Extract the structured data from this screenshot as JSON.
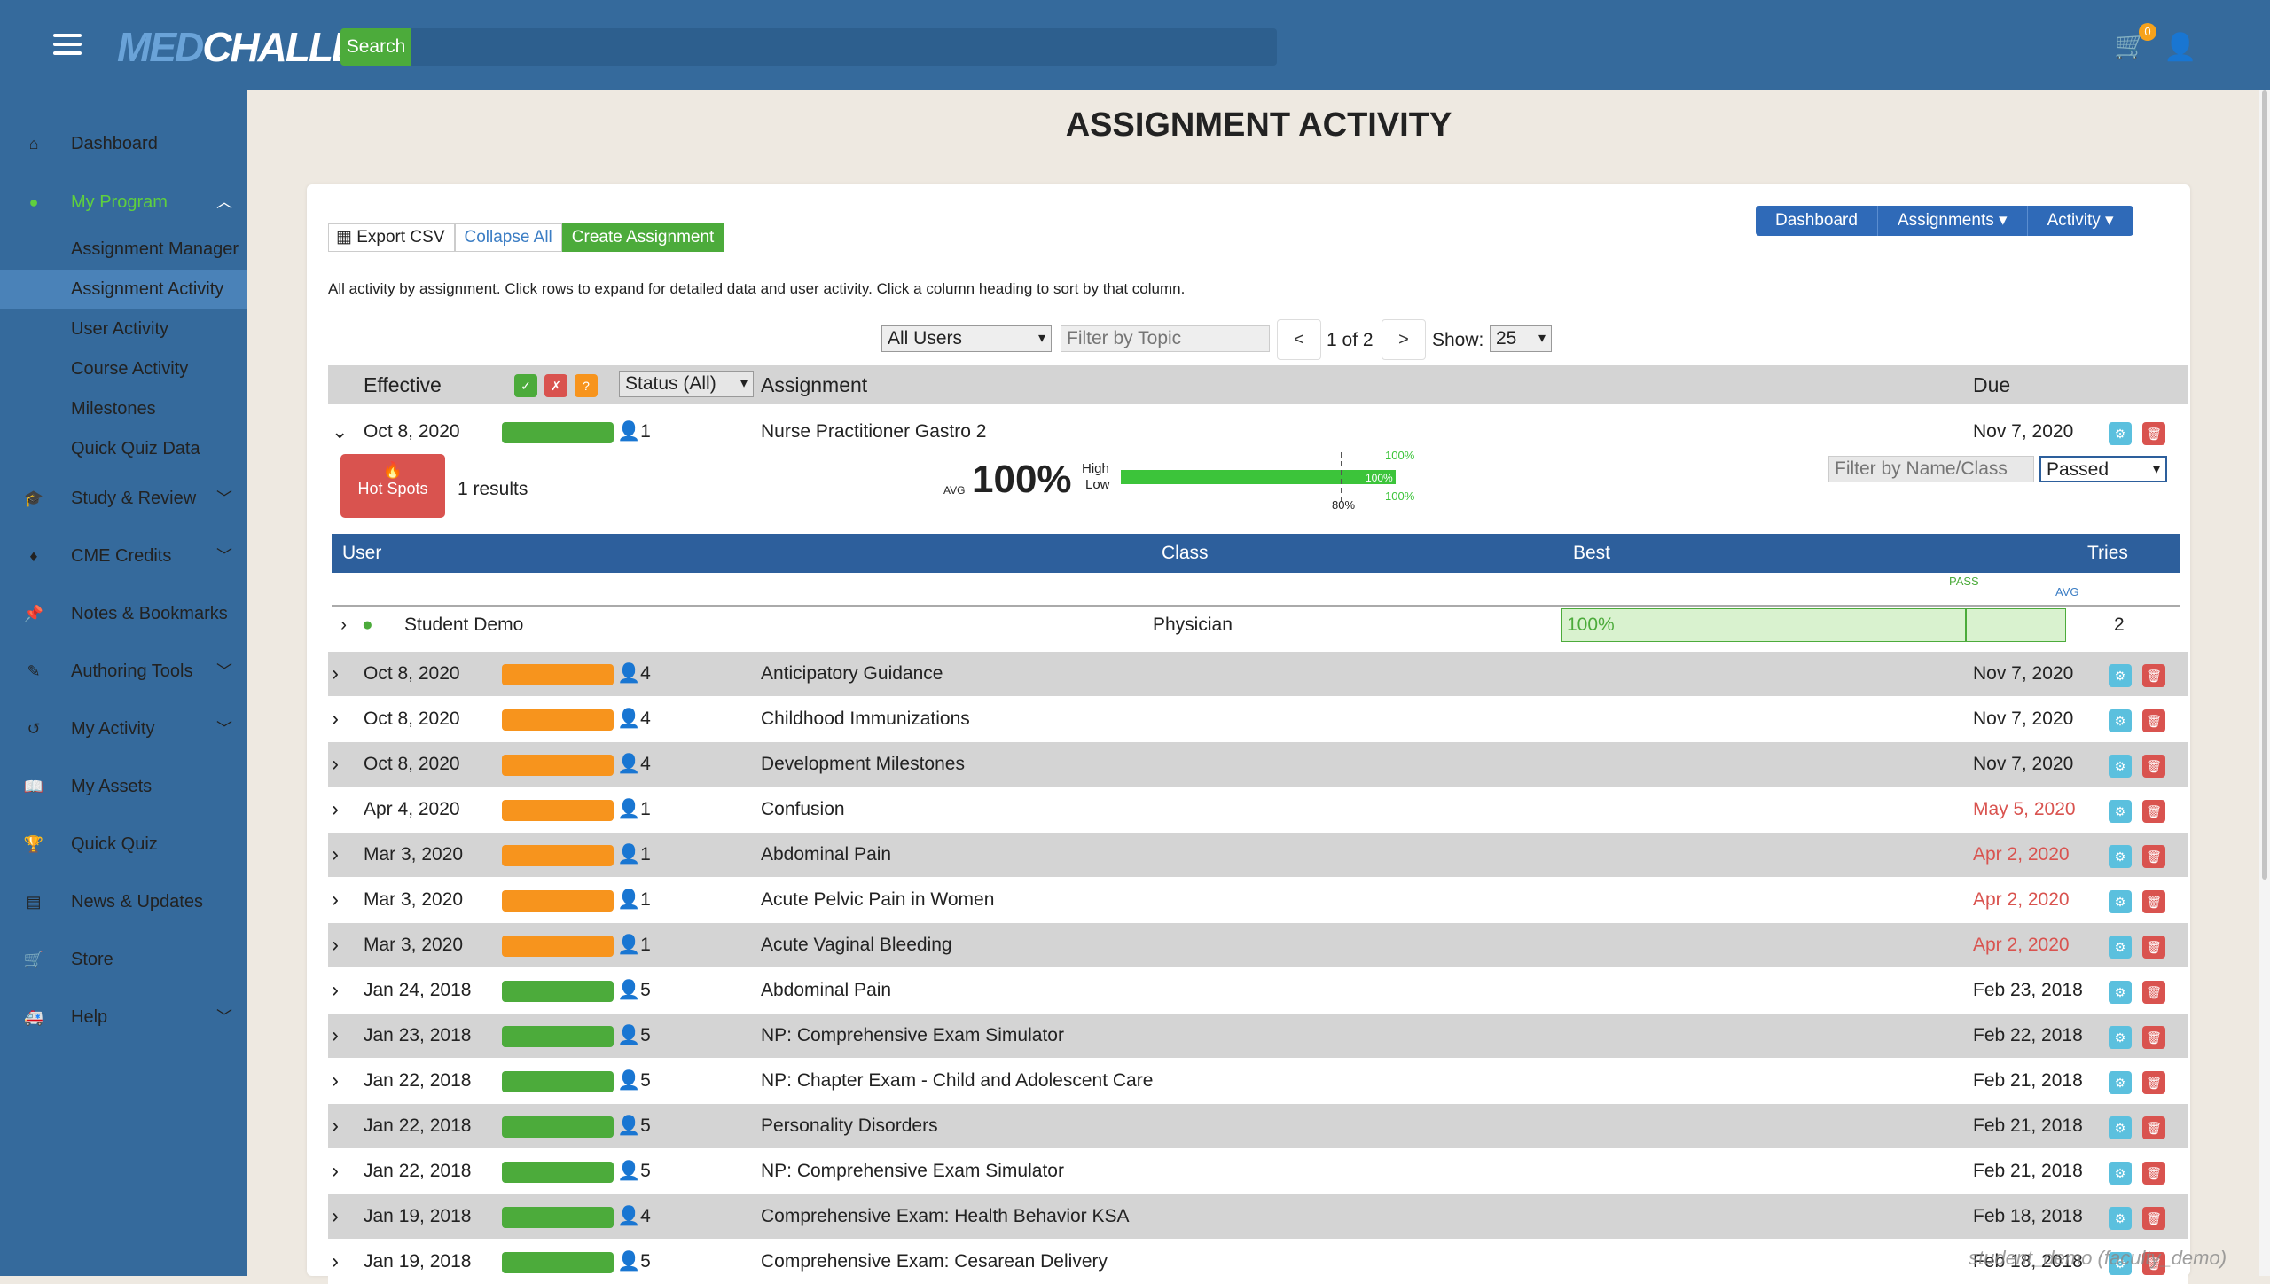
{
  "header": {
    "logo_med": "MED",
    "logo_challenger": "CHALLENGER",
    "search_label": "Search",
    "search_placeholder": "",
    "cart_count": "0"
  },
  "sidebar": {
    "items": [
      {
        "label": "Dashboard",
        "icon": "home-icon"
      },
      {
        "label": "My Program",
        "icon": "users-icon"
      },
      {
        "label": "Study & Review",
        "icon": "graduation-cap-icon"
      },
      {
        "label": "CME Credits",
        "icon": "certificate-icon"
      },
      {
        "label": "Notes & Bookmarks",
        "icon": "pushpin-icon"
      },
      {
        "label": "Authoring Tools",
        "icon": "edit-icon"
      },
      {
        "label": "My Activity",
        "icon": "history-icon"
      },
      {
        "label": "My Assets",
        "icon": "book-icon"
      },
      {
        "label": "Quick Quiz",
        "icon": "trophy-icon"
      },
      {
        "label": "News & Updates",
        "icon": "newspaper-icon"
      },
      {
        "label": "Store",
        "icon": "cart-icon"
      },
      {
        "label": "Help",
        "icon": "ambulance-icon"
      }
    ],
    "program_sub": [
      "Assignment Manager",
      "Assignment Activity",
      "User Activity",
      "Course Activity",
      "Milestones",
      "Quick Quiz Data"
    ]
  },
  "page_title": "ASSIGNMENT ACTIVITY",
  "toolbar": {
    "export_csv": "Export CSV",
    "collapse_all": "Collapse All",
    "create_assignment": "Create Assignment"
  },
  "nav": {
    "dashboard": "Dashboard",
    "assignments": "Assignments",
    "activity": "Activity"
  },
  "description": "All activity by assignment. Click rows to expand for detailed data and user activity. Click a column heading to sort by that column.",
  "filters": {
    "users": "All Users",
    "topic_placeholder": "Filter by Topic",
    "prev": "<",
    "page": "1 of 2",
    "next": ">",
    "show_label": "Show:",
    "show_value": "25"
  },
  "table_header": {
    "effective": "Effective",
    "status": "Status (All)",
    "assignment": "Assignment",
    "due": "Due"
  },
  "expanded_row": {
    "effective": "Oct 8, 2020",
    "count": "1",
    "assignment": "Nurse Practitioner Gastro 2",
    "due": "Nov 7, 2020",
    "hotspots": "Hot Spots",
    "results": "1 results",
    "avg_label": "AVG",
    "avg_value": "100%",
    "high_label": "High",
    "low_label": "Low",
    "high_value": "100%",
    "low_value": "100%",
    "bar_value": "100%",
    "pass_mark": "80%",
    "filter_placeholder": "Filter by Name/Class",
    "filter_select": "Passed"
  },
  "sub_table": {
    "headers": {
      "user": "User",
      "class": "Class",
      "best": "Best",
      "tries": "Tries"
    },
    "pass_label": "PASS",
    "avg_label": "AVG",
    "row": {
      "user": "Student Demo",
      "class": "Physician",
      "best": "100%",
      "tries": "2"
    }
  },
  "rows": [
    {
      "effective": "Oct 8, 2020",
      "color": "orange",
      "count": "4",
      "assignment": "Anticipatory Guidance",
      "due": "Nov 7, 2020",
      "overdue": false
    },
    {
      "effective": "Oct 8, 2020",
      "color": "orange",
      "count": "4",
      "assignment": "Childhood Immunizations",
      "due": "Nov 7, 2020",
      "overdue": false
    },
    {
      "effective": "Oct 8, 2020",
      "color": "orange",
      "count": "4",
      "assignment": "Development Milestones",
      "due": "Nov 7, 2020",
      "overdue": false
    },
    {
      "effective": "Apr 4, 2020",
      "color": "orange",
      "count": "1",
      "assignment": "Confusion",
      "due": "May 5, 2020",
      "overdue": true
    },
    {
      "effective": "Mar 3, 2020",
      "color": "orange",
      "count": "1",
      "assignment": "Abdominal Pain",
      "due": "Apr 2, 2020",
      "overdue": true
    },
    {
      "effective": "Mar 3, 2020",
      "color": "orange",
      "count": "1",
      "assignment": "Acute Pelvic Pain in Women",
      "due": "Apr 2, 2020",
      "overdue": true
    },
    {
      "effective": "Mar 3, 2020",
      "color": "orange",
      "count": "1",
      "assignment": "Acute Vaginal Bleeding",
      "due": "Apr 2, 2020",
      "overdue": true
    },
    {
      "effective": "Jan 24, 2018",
      "color": "green",
      "count": "5",
      "assignment": "Abdominal Pain",
      "due": "Feb 23, 2018",
      "overdue": false
    },
    {
      "effective": "Jan 23, 2018",
      "color": "green",
      "count": "5",
      "assignment": "NP: Comprehensive Exam Simulator",
      "due": "Feb 22, 2018",
      "overdue": false
    },
    {
      "effective": "Jan 22, 2018",
      "color": "green",
      "count": "5",
      "assignment": "NP: Chapter Exam - Child and Adolescent Care",
      "due": "Feb 21, 2018",
      "overdue": false
    },
    {
      "effective": "Jan 22, 2018",
      "color": "green",
      "count": "5",
      "assignment": "Personality Disorders",
      "due": "Feb 21, 2018",
      "overdue": false
    },
    {
      "effective": "Jan 22, 2018",
      "color": "green",
      "count": "5",
      "assignment": "NP: Comprehensive Exam Simulator",
      "due": "Feb 21, 2018",
      "overdue": false
    },
    {
      "effective": "Jan 19, 2018",
      "color": "green",
      "count": "4",
      "assignment": "Comprehensive Exam: Health Behavior KSA",
      "due": "Feb 18, 2018",
      "overdue": false
    },
    {
      "effective": "Jan 19, 2018",
      "color": "green",
      "count": "5",
      "assignment": "Comprehensive Exam: Cesarean Delivery",
      "due": "Feb 18, 2018",
      "overdue": false
    }
  ],
  "watermark": "student_demo (faculty_demo)"
}
